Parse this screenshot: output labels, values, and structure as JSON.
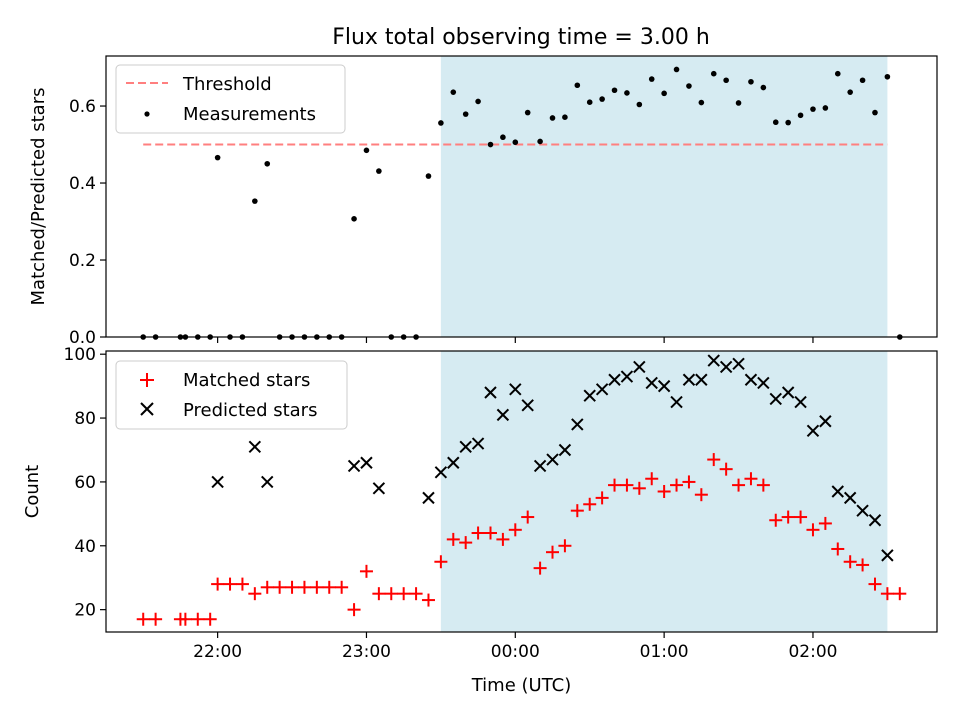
{
  "chart_data": [
    {
      "type": "scatter",
      "title": "Flux total observing time = 3.00 h",
      "xlabel": "",
      "ylabel": "Matched/Predicted stars",
      "xlim": [
        "21:15",
        "02:50"
      ],
      "ylim": [
        0,
        0.73
      ],
      "yticks": [
        "0.0",
        "0.2",
        "0.4",
        "0.6"
      ],
      "ytick_values": [
        0,
        0.2,
        0.4,
        0.6
      ],
      "shaded_span": [
        "23:30",
        "02:30"
      ],
      "threshold": {
        "name": "Threshold",
        "y": 0.5,
        "x_range": [
          "21:30",
          "02:30"
        ],
        "color": "#ff7f7f"
      },
      "legend": {
        "placement": "upper-left",
        "entries": [
          "Threshold",
          "Measurements"
        ]
      },
      "series": [
        {
          "name": "Measurements",
          "color": "#000000",
          "points": [
            [
              "21:30",
              0
            ],
            [
              "21:35",
              0
            ],
            [
              "21:45",
              0
            ],
            [
              "21:47",
              0
            ],
            [
              "21:52",
              0
            ],
            [
              "21:57",
              0
            ],
            [
              "22:00",
              0.466
            ],
            [
              "22:05",
              0
            ],
            [
              "22:10",
              0
            ],
            [
              "22:15",
              0.353
            ],
            [
              "22:20",
              0.45
            ],
            [
              "22:25",
              0
            ],
            [
              "22:30",
              0
            ],
            [
              "22:35",
              0
            ],
            [
              "22:40",
              0
            ],
            [
              "22:45",
              0
            ],
            [
              "22:50",
              0
            ],
            [
              "22:55",
              0.307
            ],
            [
              "23:00",
              0.485
            ],
            [
              "23:05",
              0.431
            ],
            [
              "23:10",
              0
            ],
            [
              "23:15",
              0
            ],
            [
              "23:20",
              0
            ],
            [
              "23:25",
              0.418
            ],
            [
              "23:30",
              0.556
            ],
            [
              "23:35",
              0.636
            ],
            [
              "23:40",
              0.579
            ],
            [
              "23:45",
              0.612
            ],
            [
              "23:50",
              0.5
            ],
            [
              "23:55",
              0.519
            ],
            [
              "00:00",
              0.506
            ],
            [
              "00:05",
              0.583
            ],
            [
              "00:10",
              0.508
            ],
            [
              "00:15",
              0.569
            ],
            [
              "00:20",
              0.571
            ],
            [
              "00:25",
              0.654
            ],
            [
              "00:30",
              0.61
            ],
            [
              "00:35",
              0.618
            ],
            [
              "00:40",
              0.641
            ],
            [
              "00:45",
              0.634
            ],
            [
              "00:50",
              0.604
            ],
            [
              "00:55",
              0.67
            ],
            [
              "01:00",
              0.633
            ],
            [
              "01:05",
              0.695
            ],
            [
              "01:10",
              0.652
            ],
            [
              "01:15",
              0.609
            ],
            [
              "01:20",
              0.684
            ],
            [
              "01:25",
              0.667
            ],
            [
              "01:30",
              0.608
            ],
            [
              "01:35",
              0.663
            ],
            [
              "01:40",
              0.648
            ],
            [
              "01:45",
              0.558
            ],
            [
              "01:50",
              0.557
            ],
            [
              "01:55",
              0.576
            ],
            [
              "02:00",
              0.592
            ],
            [
              "02:05",
              0.595
            ],
            [
              "02:10",
              0.684
            ],
            [
              "02:15",
              0.636
            ],
            [
              "02:20",
              0.667
            ],
            [
              "02:25",
              0.583
            ],
            [
              "02:30",
              0.676
            ],
            [
              "02:35",
              0
            ]
          ]
        }
      ]
    },
    {
      "type": "scatter",
      "title": "",
      "xlabel": "Time (UTC)",
      "ylabel": "Count",
      "xlim": [
        "21:15",
        "02:50"
      ],
      "ylim": [
        13,
        101
      ],
      "xticks": [
        "22:00",
        "23:00",
        "00:00",
        "01:00",
        "02:00"
      ],
      "yticks": [
        "20",
        "40",
        "60",
        "80",
        "100"
      ],
      "ytick_values": [
        20,
        40,
        60,
        80,
        100
      ],
      "shaded_span": [
        "23:30",
        "02:30"
      ],
      "legend": {
        "placement": "upper-left",
        "entries": [
          "Matched stars",
          "Predicted stars"
        ]
      },
      "series": [
        {
          "name": "Matched stars",
          "marker": "plus",
          "color": "#ff0000",
          "points": [
            [
              "21:30",
              17
            ],
            [
              "21:35",
              17
            ],
            [
              "21:45",
              17
            ],
            [
              "21:47",
              17
            ],
            [
              "21:52",
              17
            ],
            [
              "21:57",
              17
            ],
            [
              "22:00",
              28
            ],
            [
              "22:05",
              28
            ],
            [
              "22:10",
              28
            ],
            [
              "22:15",
              25
            ],
            [
              "22:20",
              27
            ],
            [
              "22:25",
              27
            ],
            [
              "22:30",
              27
            ],
            [
              "22:35",
              27
            ],
            [
              "22:40",
              27
            ],
            [
              "22:45",
              27
            ],
            [
              "22:50",
              27
            ],
            [
              "22:55",
              20
            ],
            [
              "23:00",
              32
            ],
            [
              "23:05",
              25
            ],
            [
              "23:10",
              25
            ],
            [
              "23:15",
              25
            ],
            [
              "23:20",
              25
            ],
            [
              "23:25",
              23
            ],
            [
              "23:30",
              35
            ],
            [
              "23:35",
              42
            ],
            [
              "23:40",
              41
            ],
            [
              "23:45",
              44
            ],
            [
              "23:50",
              44
            ],
            [
              "23:55",
              42
            ],
            [
              "00:00",
              45
            ],
            [
              "00:05",
              49
            ],
            [
              "00:10",
              33
            ],
            [
              "00:15",
              38
            ],
            [
              "00:20",
              40
            ],
            [
              "00:25",
              51
            ],
            [
              "00:30",
              53
            ],
            [
              "00:35",
              55
            ],
            [
              "00:40",
              59
            ],
            [
              "00:45",
              59
            ],
            [
              "00:50",
              58
            ],
            [
              "00:55",
              61
            ],
            [
              "01:00",
              57
            ],
            [
              "01:05",
              59
            ],
            [
              "01:10",
              60
            ],
            [
              "01:15",
              56
            ],
            [
              "01:20",
              67
            ],
            [
              "01:25",
              64
            ],
            [
              "01:30",
              59
            ],
            [
              "01:35",
              61
            ],
            [
              "01:40",
              59
            ],
            [
              "01:45",
              48
            ],
            [
              "01:50",
              49
            ],
            [
              "01:55",
              49
            ],
            [
              "02:00",
              45
            ],
            [
              "02:05",
              47
            ],
            [
              "02:10",
              39
            ],
            [
              "02:15",
              35
            ],
            [
              "02:20",
              34
            ],
            [
              "02:25",
              28
            ],
            [
              "02:30",
              25
            ],
            [
              "02:35",
              25
            ]
          ]
        },
        {
          "name": "Predicted stars",
          "marker": "x",
          "color": "#000000",
          "points": [
            [
              "22:00",
              60
            ],
            [
              "22:15",
              71
            ],
            [
              "22:20",
              60
            ],
            [
              "22:55",
              65
            ],
            [
              "23:00",
              66
            ],
            [
              "23:05",
              58
            ],
            [
              "23:25",
              55
            ],
            [
              "23:30",
              63
            ],
            [
              "23:35",
              66
            ],
            [
              "23:40",
              71
            ],
            [
              "23:45",
              72
            ],
            [
              "23:50",
              88
            ],
            [
              "23:55",
              81
            ],
            [
              "00:00",
              89
            ],
            [
              "00:05",
              84
            ],
            [
              "00:10",
              65
            ],
            [
              "00:15",
              67
            ],
            [
              "00:20",
              70
            ],
            [
              "00:25",
              78
            ],
            [
              "00:30",
              87
            ],
            [
              "00:35",
              89
            ],
            [
              "00:40",
              92
            ],
            [
              "00:45",
              93
            ],
            [
              "00:50",
              96
            ],
            [
              "00:55",
              91
            ],
            [
              "01:00",
              90
            ],
            [
              "01:05",
              85
            ],
            [
              "01:10",
              92
            ],
            [
              "01:15",
              92
            ],
            [
              "01:20",
              98
            ],
            [
              "01:25",
              96
            ],
            [
              "01:30",
              97
            ],
            [
              "01:35",
              92
            ],
            [
              "01:40",
              91
            ],
            [
              "01:45",
              86
            ],
            [
              "01:50",
              88
            ],
            [
              "01:55",
              85
            ],
            [
              "02:00",
              76
            ],
            [
              "02:05",
              79
            ],
            [
              "02:10",
              57
            ],
            [
              "02:15",
              55
            ],
            [
              "02:20",
              51
            ],
            [
              "02:25",
              48
            ],
            [
              "02:30",
              37
            ]
          ]
        }
      ]
    }
  ]
}
